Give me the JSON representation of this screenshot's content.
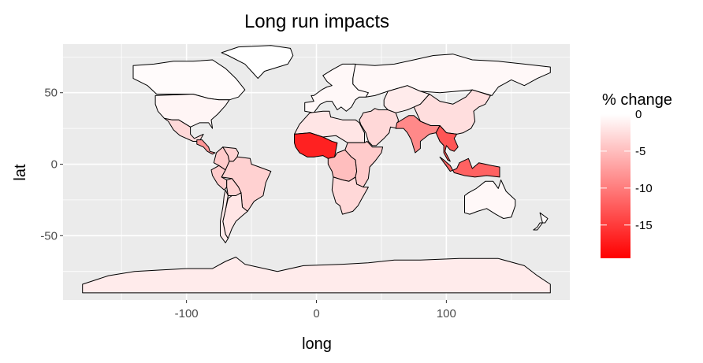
{
  "chart_data": {
    "type": "map",
    "title": "Long run impacts",
    "xlabel": "long",
    "ylabel": "lat",
    "xlim": [
      -195,
      195
    ],
    "ylim": [
      -95,
      84
    ],
    "x_ticks": [
      -100,
      0,
      100
    ],
    "y_ticks": [
      -50,
      0,
      50
    ],
    "grid": true,
    "legend": {
      "title": "% change",
      "placement": "right",
      "ticks": [
        0,
        -5,
        -10,
        -15
      ],
      "range": [
        -19.5,
        0
      ],
      "color_low": "#ff0000",
      "color_high": "#ffffff"
    },
    "regions": [
      {
        "region": "Russia",
        "value": -0.5
      },
      {
        "region": "Greenland",
        "value": 0
      },
      {
        "region": "Canada",
        "value": -0.3
      },
      {
        "region": "United States",
        "value": -0.8
      },
      {
        "region": "Mexico",
        "value": -3
      },
      {
        "region": "Central America",
        "value": -8
      },
      {
        "region": "Colombia",
        "value": -4
      },
      {
        "region": "Venezuela",
        "value": -3.5
      },
      {
        "region": "Brazil",
        "value": -3.5
      },
      {
        "region": "Peru",
        "value": -4
      },
      {
        "region": "Bolivia",
        "value": -3.5
      },
      {
        "region": "Argentina",
        "value": -2
      },
      {
        "region": "Chile",
        "value": -1.5
      },
      {
        "region": "Europe",
        "value": -0.5
      },
      {
        "region": "North Africa",
        "value": -2
      },
      {
        "region": "West Africa",
        "value": -17
      },
      {
        "region": "Central Africa",
        "value": -5
      },
      {
        "region": "East Africa",
        "value": -4
      },
      {
        "region": "Southern Africa",
        "value": -3
      },
      {
        "region": "Middle East",
        "value": -3
      },
      {
        "region": "Central Asia",
        "value": -1.5
      },
      {
        "region": "India",
        "value": -9
      },
      {
        "region": "China",
        "value": -2.5
      },
      {
        "region": "Southeast Asia",
        "value": -13
      },
      {
        "region": "Indonesia",
        "value": -12
      },
      {
        "region": "Australia",
        "value": -0.5
      },
      {
        "region": "New Zealand",
        "value": -0.3
      },
      {
        "region": "Antarctica",
        "value": -1.5
      }
    ]
  }
}
